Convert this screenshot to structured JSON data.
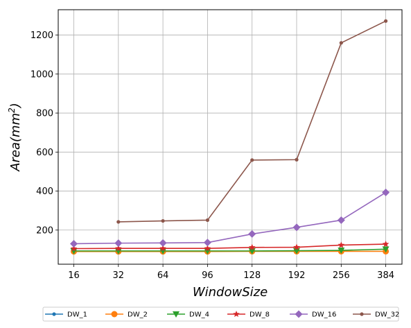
{
  "chart_data": {
    "type": "line",
    "xlabel": "WindowSize",
    "ylabel_prefix": "Area(mm",
    "ylabel_sup": "2",
    "ylabel_suffix": ")",
    "categories": [
      "16",
      "32",
      "64",
      "96",
      "128",
      "192",
      "256",
      "384"
    ],
    "y_ticks": [
      "200",
      "400",
      "600",
      "800",
      "1000",
      "1200"
    ],
    "ylim": [
      25,
      1330
    ],
    "grid": true,
    "legend_position": "bottom",
    "series": [
      {
        "name": "DW_1",
        "color": "#1f77b4",
        "marker": "circle-small",
        "values": [
          null,
          null,
          null,
          null,
          null,
          null,
          null,
          null
        ]
      },
      {
        "name": "DW_2",
        "color": "#ff7f0e",
        "marker": "circle",
        "values": [
          90,
          90,
          90,
          90,
          91,
          91,
          91,
          91
        ]
      },
      {
        "name": "DW_4",
        "color": "#2ca02c",
        "marker": "triangle-down",
        "values": [
          93,
          93,
          93,
          93,
          93,
          94,
          96,
          102
        ]
      },
      {
        "name": "DW_8",
        "color": "#d62728",
        "marker": "star",
        "values": [
          105,
          106,
          106,
          106,
          111,
          112,
          123,
          128
        ]
      },
      {
        "name": "DW_16",
        "color": "#9467bd",
        "marker": "diamond",
        "values": [
          130,
          133,
          134,
          136,
          180,
          214,
          251,
          393
        ]
      },
      {
        "name": "DW_32",
        "color": "#8c564b",
        "marker": "circle-small",
        "values": [
          null,
          242,
          247,
          251,
          559,
          561,
          1160,
          1272
        ]
      }
    ]
  }
}
